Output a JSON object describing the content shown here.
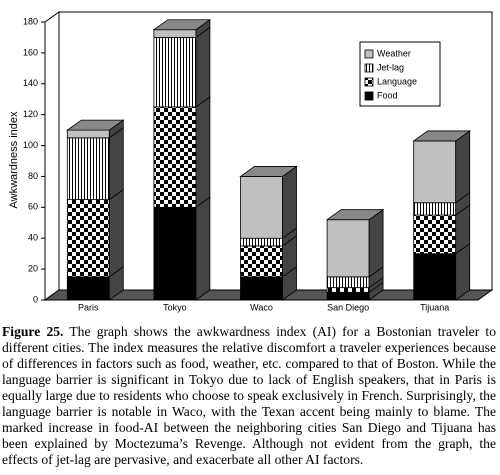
{
  "chart_data": {
    "type": "stacked-bar-3d",
    "ylabel": "Awkwardness index",
    "categories": [
      "Paris",
      "Tokyo",
      "Waco",
      "San Diego",
      "Tijuana"
    ],
    "series": [
      {
        "name": "Food",
        "color": "#000000",
        "values": [
          15,
          60,
          15,
          5,
          30
        ]
      },
      {
        "name": "Language",
        "color": "#000000",
        "pattern": "checker",
        "values": [
          50,
          65,
          20,
          3,
          25
        ]
      },
      {
        "name": "Jet-lag",
        "color": "#000000",
        "pattern": "vertical-stripes",
        "values": [
          40,
          45,
          5,
          7,
          8
        ]
      },
      {
        "name": "Weather",
        "color": "#c0c0c0",
        "values": [
          5,
          5,
          40,
          37,
          40
        ]
      }
    ],
    "ylim": [
      0,
      180
    ],
    "yticks": [
      0,
      20,
      40,
      60,
      80,
      100,
      120,
      140,
      160,
      180
    ],
    "legend": "upper-right"
  },
  "caption": {
    "label": "Figure 25.",
    "text": "The graph shows the awkwardness index (AI) for a Bostonian traveler to different cities. The index measures the relative discomfort a traveler experiences because of differences in factors such as food, weather, etc. compared to that of Boston. While the language barrier is significant in Tokyo due to lack of English speakers, that in Paris is equally large due to residents who choose to speak exclusively in French. Surprisingly, the language barrier is notable in Waco, with the Texan accent being mainly to blame. The marked increase in food-AI between the neighboring cities San Diego and Tijuana has been explained by Moctezuma’s Revenge. Although not evident from the graph, the effects of jet-lag are pervasive, and exacerbate all other AI factors."
  }
}
